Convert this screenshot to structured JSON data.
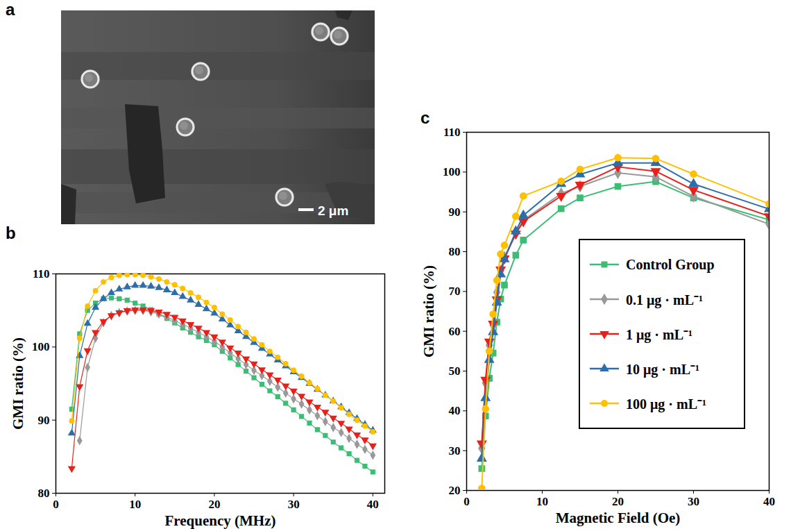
{
  "chart_data": [
    {
      "panel": "a",
      "type": "image",
      "annotations": [
        "2 μm"
      ]
    },
    {
      "panel": "b",
      "type": "line",
      "xlabel": "Frequency (MHz)",
      "ylabel": "GMI ratio (%)",
      "x": [
        2,
        3,
        4,
        5,
        6,
        7,
        8,
        9,
        10,
        11,
        12,
        13,
        14,
        15,
        16,
        17,
        18,
        19,
        20,
        21,
        22,
        23,
        24,
        25,
        26,
        27,
        28,
        29,
        30,
        31,
        32,
        33,
        34,
        35,
        36,
        37,
        38,
        39,
        40
      ],
      "xlim": [
        0,
        41.5
      ],
      "xticks": [
        0,
        10,
        20,
        30,
        40
      ],
      "ylim": [
        80,
        110
      ],
      "yticks": [
        80,
        90,
        100,
        110
      ],
      "series": [
        {
          "name": "Control Group",
          "color": "#3dbd74",
          "marker": "square",
          "values": [
            91.5,
            101.8,
            105.0,
            106.0,
            106.6,
            106.7,
            106.6,
            106.4,
            106.0,
            105.6,
            105.1,
            104.5,
            103.9,
            103.3,
            102.6,
            102.0,
            101.4,
            100.9,
            100.3,
            99.4,
            98.5,
            97.6,
            96.7,
            95.8,
            94.9,
            94.0,
            93.2,
            92.3,
            91.4,
            90.5,
            89.6,
            88.7,
            87.9,
            87.0,
            86.2,
            85.4,
            84.5,
            83.7,
            82.9
          ]
        },
        {
          "name": "0.1 μg · mL⁻¹",
          "color": "#999999",
          "marker": "diamond",
          "values": [
            null,
            87.2,
            97.2,
            101.2,
            103.3,
            104.3,
            104.7,
            104.9,
            105.0,
            105.0,
            104.8,
            104.5,
            104.1,
            103.6,
            103.1,
            102.6,
            102.0,
            101.4,
            100.8,
            100.0,
            99.2,
            98.4,
            97.6,
            96.8,
            96.1,
            95.3,
            94.5,
            93.7,
            92.9,
            92.2,
            91.4,
            90.6,
            89.8,
            89.0,
            88.3,
            87.5,
            86.7,
            86.0,
            85.2
          ]
        },
        {
          "name": "1 μg · mL⁻¹",
          "color": "#e8201a",
          "marker": "triangle-down",
          "values": [
            83.4,
            94.6,
            99.5,
            102.0,
            103.5,
            104.3,
            104.7,
            105.0,
            105.1,
            105.1,
            105.0,
            104.8,
            104.5,
            104.1,
            103.6,
            103.1,
            102.6,
            102.0,
            101.4,
            100.7,
            99.9,
            99.2,
            98.4,
            97.7,
            96.9,
            96.2,
            95.5,
            94.7,
            94.0,
            93.3,
            92.5,
            91.8,
            91.1,
            90.3,
            89.6,
            88.8,
            88.0,
            87.3,
            86.5
          ]
        },
        {
          "name": "10 μg · mL⁻¹",
          "color": "#2e6ea8",
          "marker": "triangle",
          "values": [
            88.2,
            98.8,
            103.2,
            105.4,
            106.6,
            107.4,
            107.9,
            108.2,
            108.4,
            108.4,
            108.3,
            108.1,
            107.8,
            107.4,
            106.9,
            106.4,
            105.8,
            105.2,
            104.6,
            103.8,
            103.0,
            102.2,
            101.4,
            100.6,
            99.8,
            99.0,
            98.2,
            97.4,
            96.6,
            95.8,
            95.0,
            94.2,
            93.4,
            92.6,
            91.8,
            91.0,
            90.2,
            89.4,
            88.6
          ]
        },
        {
          "name": "100 μg · mL⁻¹",
          "color": "#ffc000",
          "marker": "circle",
          "values": [
            89.9,
            101.2,
            105.6,
            107.7,
            108.9,
            109.5,
            109.8,
            109.9,
            109.9,
            109.8,
            109.6,
            109.3,
            108.9,
            108.5,
            108.0,
            107.4,
            106.8,
            106.1,
            105.4,
            104.5,
            103.7,
            102.8,
            102.0,
            101.1,
            100.3,
            99.4,
            98.6,
            97.7,
            96.8,
            96.0,
            95.1,
            94.3,
            93.4,
            92.6,
            91.7,
            90.8,
            90.0,
            89.2,
            88.4
          ]
        }
      ]
    },
    {
      "panel": "c",
      "type": "line",
      "xlabel": "Magnetic Field (Oe)",
      "ylabel": "GMI ratio (%)",
      "legend": "lower right",
      "x": [
        2,
        2.5,
        3,
        3.5,
        4,
        4.5,
        5,
        6.5,
        7.5,
        12.5,
        15,
        20,
        25,
        30,
        40
      ],
      "xlim": [
        0,
        40
      ],
      "xticks": [
        0,
        10,
        20,
        30,
        40
      ],
      "ylim": [
        20,
        110
      ],
      "yticks": [
        20,
        30,
        40,
        50,
        60,
        70,
        80,
        90,
        100,
        110
      ],
      "series": [
        {
          "name": "Control Group",
          "color": "#3dbd74",
          "marker": "square",
          "values": [
            25.5,
            38.7,
            48.2,
            54.5,
            62.3,
            68.1,
            71.6,
            79.1,
            82.9,
            90.8,
            93.5,
            96.4,
            97.6,
            93.5,
            88.0
          ]
        },
        {
          "name": "0.1 μg · mL⁻¹",
          "color": "#999999",
          "marker": "diamond",
          "values": [
            30.6,
            47.0,
            56.5,
            61.5,
            69.8,
            75.2,
            78.6,
            84.7,
            87.9,
            94.6,
            96.4,
            99.8,
            98.8,
            93.9,
            86.9
          ]
        },
        {
          "name": "1 μg · mL⁻¹",
          "color": "#e8201a",
          "marker": "triangle-down",
          "values": [
            31.8,
            47.8,
            57.4,
            61.9,
            68.0,
            75.5,
            78.3,
            84.5,
            87.6,
            94.0,
            96.8,
            101.3,
            100.2,
            95.5,
            88.9
          ]
        },
        {
          "name": "10 μg · mL⁻¹",
          "color": "#2e6ea8",
          "marker": "triangle",
          "values": [
            28.0,
            43.2,
            52.8,
            59.8,
            67.2,
            74.3,
            78.1,
            85.1,
            89.1,
            97.0,
            99.4,
            102.3,
            102.3,
            97.0,
            90.7
          ]
        },
        {
          "name": "100 μg · mL⁻¹",
          "color": "#ffc000",
          "marker": "circle",
          "values": [
            20.5,
            40.5,
            55.0,
            64.3,
            72.8,
            79.4,
            81.6,
            88.9,
            94.0,
            97.7,
            100.7,
            103.6,
            103.4,
            99.5,
            92.0
          ]
        }
      ]
    }
  ]
}
